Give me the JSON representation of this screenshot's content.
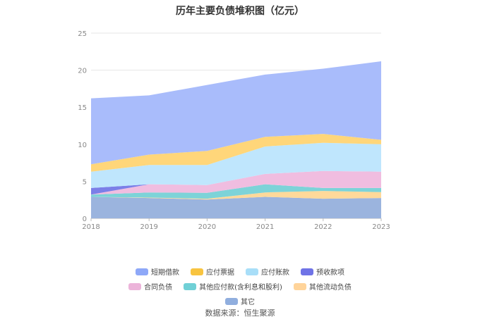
{
  "chart_data": {
    "type": "area",
    "stacked": true,
    "title": "历年主要负债堆积图（亿元）",
    "x": [
      "2018",
      "2019",
      "2020",
      "2021",
      "2022",
      "2023"
    ],
    "ylim": [
      0,
      25
    ],
    "yticks": [
      0,
      5,
      10,
      15,
      20,
      25
    ],
    "grid": true,
    "legend_position": "bottom",
    "series": [
      {
        "name": "其它",
        "color": "#9bb4de",
        "values": [
          2.9,
          2.75,
          2.55,
          2.9,
          2.65,
          2.75
        ]
      },
      {
        "name": "其他流动负债",
        "color": "#ffd99a",
        "values": [
          0.0,
          0.05,
          0.1,
          0.6,
          1.05,
          0.8
        ]
      },
      {
        "name": "其他应付款(含利息和股利)",
        "color": "#7dd3d8",
        "values": [
          0.3,
          0.7,
          0.8,
          1.1,
          0.4,
          0.55
        ]
      },
      {
        "name": "合同负债",
        "color": "#f0bde0",
        "values": [
          0.0,
          1.1,
          1.05,
          1.4,
          2.3,
          2.2
        ]
      },
      {
        "name": "预收款项",
        "color": "#7b7fe8",
        "values": [
          0.9,
          0.0,
          0.0,
          0.0,
          0.0,
          0.0
        ]
      },
      {
        "name": "应付账款",
        "color": "#bfe6fd",
        "values": [
          2.2,
          2.6,
          2.7,
          3.7,
          3.8,
          3.7
        ]
      },
      {
        "name": "应付票据",
        "color": "#ffd67a",
        "values": [
          1.0,
          1.4,
          1.9,
          1.3,
          1.2,
          0.6
        ]
      },
      {
        "name": "短期借款",
        "color": "#a9bcfb",
        "values": [
          8.9,
          8.0,
          8.9,
          8.4,
          8.8,
          10.6
        ]
      }
    ],
    "legend_order": [
      "短期借款",
      "应付票据",
      "应付账款",
      "预收款项",
      "合同负债",
      "其他应付款(含利息和股利)",
      "其他流动负债",
      "其它"
    ],
    "legend_colors": {
      "短期借款": "#8ea8f8",
      "应付票据": "#f8c440",
      "应付账款": "#a8def8",
      "预收款项": "#6f73e6",
      "合同负债": "#ecb4da",
      "其他应付款(含利息和股利)": "#70d0d6",
      "其他流动负债": "#ffd49a",
      "其它": "#90aede"
    }
  },
  "source_text": "数据来源：恒生聚源"
}
